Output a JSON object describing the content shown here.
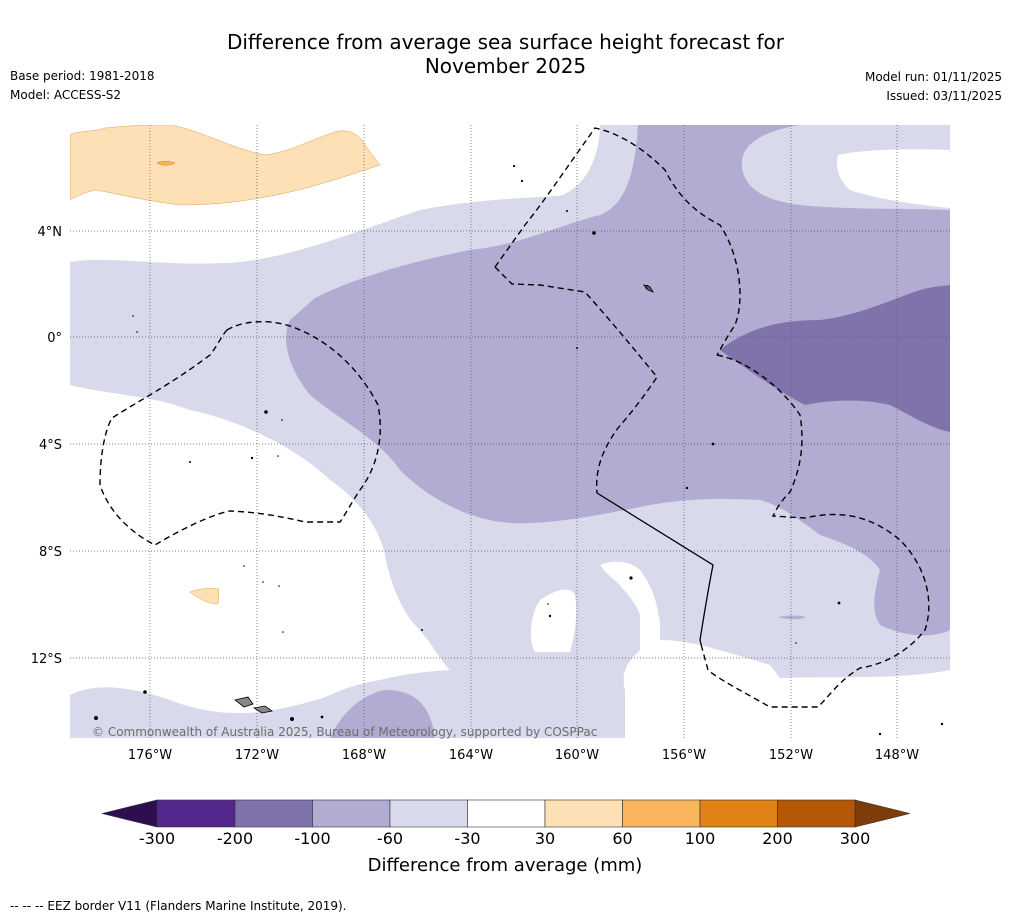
{
  "title": {
    "line1": "Difference from average sea surface height forecast for",
    "line2": "November 2025"
  },
  "meta_left": {
    "base_period": "Base period: 1981-2018",
    "model": "Model: ACCESS-S2"
  },
  "meta_right": {
    "model_run": "Model run: 01/11/2025",
    "issued": "Issued: 03/11/2025"
  },
  "map": {
    "copyright": "© Commonwealth of Australia 2025, Bureau of Meteorology, supported by COSPPac",
    "lat_labels": [
      "4°N",
      "0°",
      "4°S",
      "8°S",
      "12°S"
    ],
    "lon_labels": [
      "176°W",
      "172°W",
      "168°W",
      "164°W",
      "160°W",
      "156°W",
      "152°W",
      "148°W"
    ]
  },
  "colorbar": {
    "title": "Difference from average (mm)",
    "tick_labels": [
      "-300",
      "-200",
      "-100",
      "-60",
      "-30",
      "30",
      "60",
      "100",
      "200",
      "300"
    ],
    "colors": [
      "#2d0f4f",
      "#54278f",
      "#8073ac",
      "#b2abd2",
      "#d8daeb",
      "#ffffff",
      "#fee0b6",
      "#f9b55e",
      "#e08214",
      "#b35806",
      "#7f3b08"
    ]
  },
  "footnote": "--  --  -- EEZ border V11 (Flanders Marine Institute, 2019)."
}
